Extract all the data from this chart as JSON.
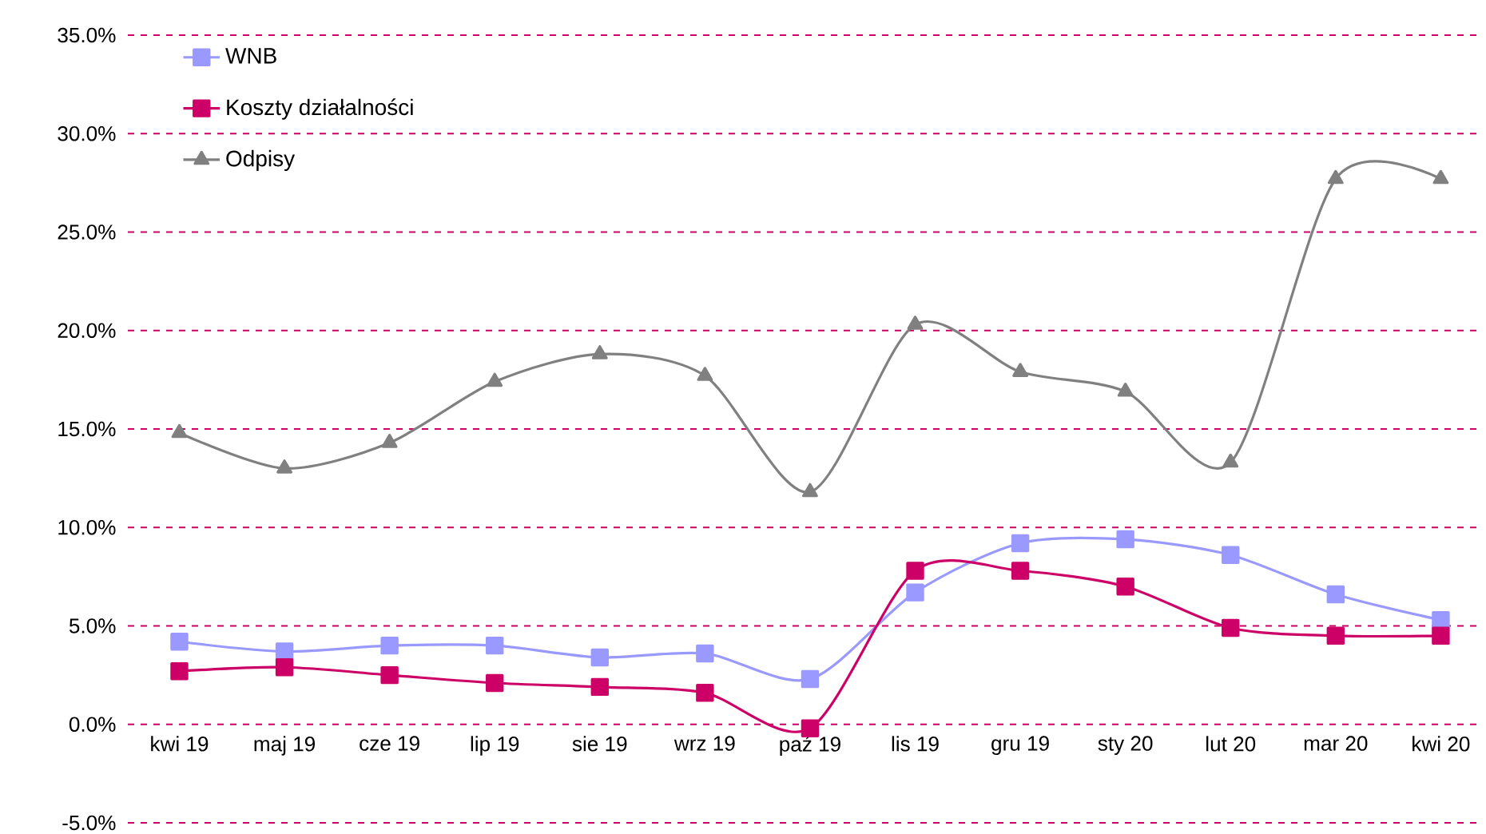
{
  "chart_data": {
    "type": "line",
    "categories": [
      "kwi 19",
      "maj 19",
      "cze 19",
      "lip 19",
      "sie 19",
      "wrz 19",
      "paź 19",
      "lis 19",
      "gru 19",
      "sty 20",
      "lut 20",
      "mar 20",
      "kwi 20"
    ],
    "series": [
      {
        "name": "WNB",
        "color": "#9999ff",
        "marker": "square",
        "values": [
          4.2,
          3.7,
          4.0,
          4.0,
          3.4,
          3.6,
          2.3,
          6.7,
          9.2,
          9.4,
          8.6,
          6.6,
          5.3
        ]
      },
      {
        "name": "Koszty działalności",
        "color": "#cc0066",
        "marker": "square",
        "values": [
          2.7,
          2.9,
          2.5,
          2.1,
          1.9,
          1.6,
          -0.2,
          7.8,
          7.8,
          7.0,
          4.9,
          4.5,
          4.5
        ]
      },
      {
        "name": "Odpisy",
        "color": "#808080",
        "marker": "triangle",
        "values": [
          14.8,
          13.0,
          14.3,
          17.4,
          18.8,
          17.7,
          11.8,
          20.3,
          17.9,
          16.9,
          13.3,
          27.7,
          27.7
        ]
      }
    ],
    "ylim": [
      -5,
      35
    ],
    "yticks": [
      {
        "value": -5,
        "label": "-5.0%"
      },
      {
        "value": 0,
        "label": "0.0%"
      },
      {
        "value": 5,
        "label": "5.0%"
      },
      {
        "value": 10,
        "label": "10.0%"
      },
      {
        "value": 15,
        "label": "15.0%"
      },
      {
        "value": 20,
        "label": "20.0%"
      },
      {
        "value": 25,
        "label": "25.0%"
      },
      {
        "value": 30,
        "label": "30.0%"
      },
      {
        "value": 35,
        "label": "35.0%"
      }
    ],
    "grid": "y",
    "legend": "top left",
    "line_style": "solid"
  }
}
